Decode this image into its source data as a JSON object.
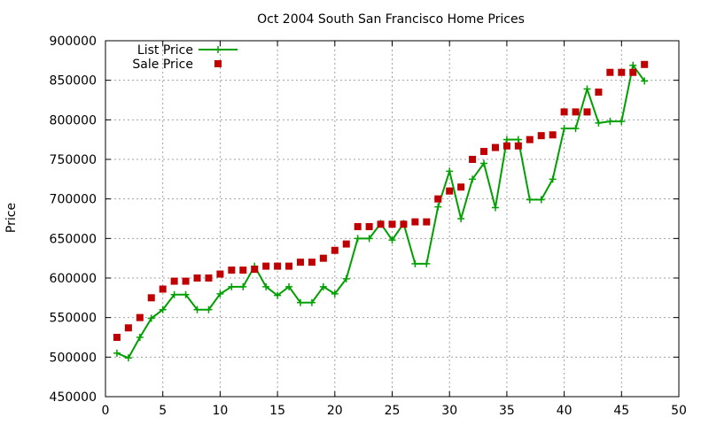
{
  "chart_data": {
    "type": "line",
    "title": "Oct 2004 South San Francisco Home Prices",
    "xlabel": "",
    "ylabel": "Price",
    "xlim": [
      0,
      50
    ],
    "ylim": [
      450000,
      900000
    ],
    "xticks": [
      0,
      5,
      10,
      15,
      20,
      25,
      30,
      35,
      40,
      45,
      50
    ],
    "yticks": [
      450000,
      500000,
      550000,
      600000,
      650000,
      700000,
      750000,
      800000,
      850000,
      900000
    ],
    "grid": true,
    "legend_position": "top-left",
    "series": [
      {
        "name": "List Price",
        "style": "line+plus",
        "color": "#00a000",
        "x": [
          1,
          2,
          3,
          4,
          5,
          6,
          7,
          8,
          9,
          10,
          11,
          12,
          13,
          14,
          15,
          16,
          17,
          18,
          19,
          20,
          21,
          22,
          23,
          24,
          25,
          26,
          27,
          28,
          29,
          30,
          31,
          32,
          33,
          34,
          35,
          36,
          37,
          38,
          39,
          40,
          41,
          42,
          43,
          44,
          45,
          46,
          47
        ],
        "y": [
          505000,
          499000,
          525000,
          549000,
          560000,
          579000,
          579000,
          560000,
          560000,
          580000,
          589000,
          589000,
          615000,
          589000,
          578000,
          589000,
          569000,
          569000,
          589000,
          580000,
          599000,
          650000,
          650000,
          669000,
          648000,
          669000,
          618000,
          618000,
          690000,
          735000,
          675000,
          725000,
          745000,
          689000,
          775000,
          775000,
          699000,
          699000,
          725000,
          789000,
          789000,
          839000,
          796000,
          798000,
          798000,
          869000,
          849000
        ]
      },
      {
        "name": "Sale Price",
        "style": "square",
        "color": "#c00000",
        "x": [
          1,
          2,
          3,
          4,
          5,
          6,
          7,
          8,
          9,
          10,
          11,
          12,
          13,
          14,
          15,
          16,
          17,
          18,
          19,
          20,
          21,
          22,
          23,
          24,
          25,
          26,
          27,
          28,
          29,
          30,
          31,
          32,
          33,
          34,
          35,
          36,
          37,
          38,
          39,
          40,
          41,
          42,
          43,
          44,
          45,
          46,
          47
        ],
        "y": [
          525000,
          537000,
          550000,
          575000,
          586000,
          596000,
          596000,
          600000,
          600000,
          605000,
          610000,
          610000,
          611000,
          615000,
          615000,
          615000,
          620000,
          620000,
          625000,
          635000,
          643000,
          665000,
          665000,
          668000,
          668000,
          668000,
          671000,
          671000,
          700000,
          710000,
          715000,
          750000,
          760000,
          765000,
          767000,
          767000,
          775000,
          780000,
          781000,
          810000,
          810000,
          810000,
          835000,
          860000,
          860000,
          860000,
          870000
        ]
      }
    ]
  }
}
